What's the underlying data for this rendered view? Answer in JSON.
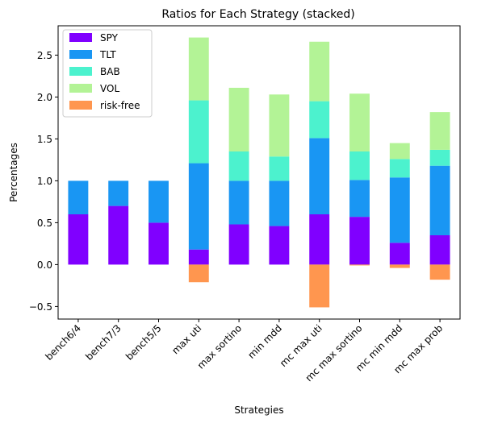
{
  "chart_data": {
    "type": "bar",
    "stacked": true,
    "title": "Ratios for Each Strategy (stacked)",
    "xlabel": "Strategies",
    "ylabel": "Percentages",
    "ylim": [
      -0.65,
      2.85
    ],
    "yticks": [
      -0.5,
      0.0,
      0.5,
      1.0,
      1.5,
      2.0,
      2.5
    ],
    "ytick_labels": [
      "−0.5",
      "0.0",
      "0.5",
      "1.0",
      "1.5",
      "2.0",
      "2.5"
    ],
    "legend_position": "top-left",
    "categories": [
      "bench6/4",
      "bench7/3",
      "bench5/5",
      "max uti",
      "max sortino",
      "min mdd",
      "mc max uti",
      "mc max sortino",
      "mc min mdd",
      "mc max prob"
    ],
    "series": [
      {
        "name": "SPY",
        "color": "#8000ff",
        "values": [
          0.6,
          0.7,
          0.5,
          0.18,
          0.48,
          0.46,
          0.6,
          0.57,
          0.26,
          0.35
        ]
      },
      {
        "name": "TLT",
        "color": "#1996f3",
        "values": [
          0.4,
          0.3,
          0.5,
          1.03,
          0.52,
          0.54,
          0.91,
          0.44,
          0.78,
          0.83
        ]
      },
      {
        "name": "BAB",
        "color": "#4cf2ce",
        "values": [
          0.0,
          0.0,
          0.0,
          0.75,
          0.35,
          0.29,
          0.44,
          0.34,
          0.22,
          0.19
        ]
      },
      {
        "name": "VOL",
        "color": "#b3f396",
        "values": [
          0.0,
          0.0,
          0.0,
          0.75,
          0.76,
          0.74,
          0.71,
          0.69,
          0.19,
          0.45
        ]
      },
      {
        "name": "risk-free",
        "color": "#ff964f",
        "values": [
          0.0,
          0.0,
          0.0,
          -0.21,
          0.0,
          0.0,
          -0.51,
          -0.01,
          -0.04,
          -0.18
        ]
      }
    ]
  }
}
